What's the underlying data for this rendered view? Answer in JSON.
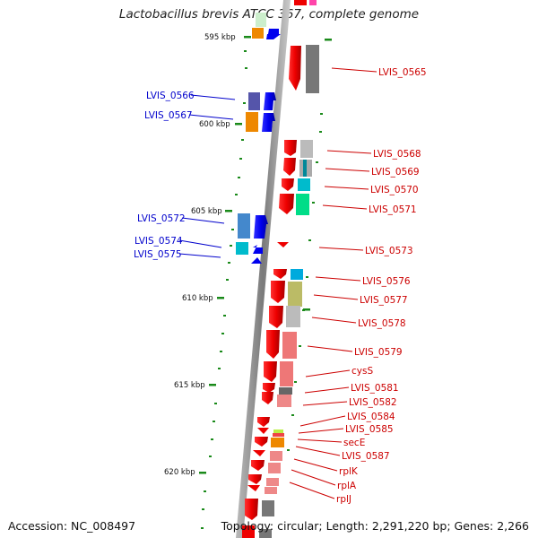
{
  "title": "Lactobacillus brevis ATCC 367, complete genome",
  "accession": "Accession: NC_008497",
  "topology": "Topology: circular; Length: 2,291,220 bp; Genes: 2,266",
  "ticks": [
    "595 kbp",
    "600 kbp",
    "605 kbp",
    "610 kbp",
    "615 kbp",
    "620 kbp"
  ],
  "left_labels": [
    "LVIS_0566",
    "LVIS_0567",
    "LVIS_0572",
    "LVIS_0574",
    "LVIS_0575"
  ],
  "right_labels": [
    "LVIS_0565",
    "LVIS_0568",
    "LVIS_0569",
    "LVIS_0570",
    "LVIS_0571",
    "LVIS_0573",
    "LVIS_0576",
    "LVIS_0577",
    "LVIS_0578",
    "LVIS_0579",
    "cysS",
    "LVIS_0581",
    "LVIS_0582",
    "LVIS_0584",
    "LVIS_0585",
    "secE",
    "LVIS_0587",
    "rplK",
    "rplA",
    "rplJ"
  ],
  "colors": {
    "forward": "#0000ee",
    "reverse": "#ee0000",
    "left_label": "#0000cc",
    "right_label": "#cc0000",
    "backbone": "#8a8a8a",
    "tick": "#1a8a1a"
  }
}
